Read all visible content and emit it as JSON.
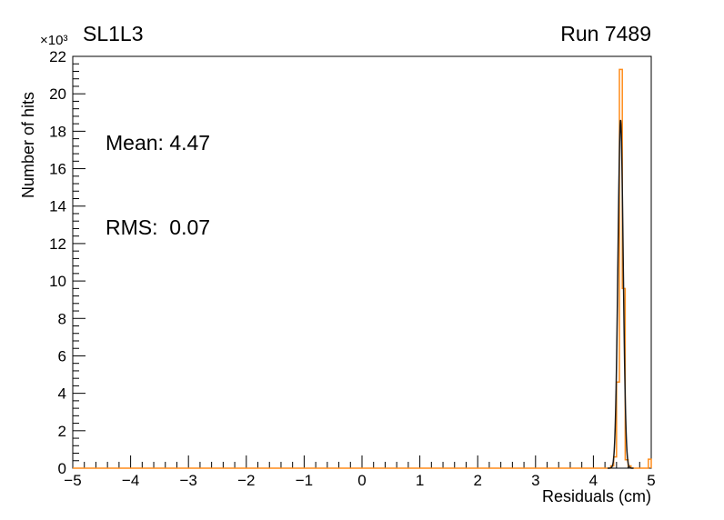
{
  "chart_data": {
    "type": "bar",
    "subtype": "histogram-with-gaussian-fit",
    "title": "SL1L3",
    "corner_label": "Run 7489",
    "xlabel": "Residuals (cm)",
    "ylabel": "Number of hits",
    "y_multiplier": "×10³",
    "annotations": {
      "mean": "Mean: 4.47",
      "rms": "RMS:  0.07"
    },
    "xlim": [
      -5,
      5
    ],
    "ylim": [
      0,
      22000
    ],
    "x_ticks": [
      -5,
      -4,
      -3,
      -2,
      -1,
      0,
      1,
      2,
      3,
      4,
      5
    ],
    "x_minor_divisions": 5,
    "y_ticks": [
      0,
      2,
      4,
      6,
      8,
      10,
      12,
      14,
      16,
      18,
      20,
      22
    ],
    "y_tick_scale": 1000,
    "y_minor_divisions": 5,
    "grid": false,
    "legend": "none",
    "frame_color": "#000000",
    "histogram": {
      "color": "#ff8c1a",
      "bin_width": 0.05,
      "bins": [
        {
          "x": 4.3,
          "y": 120
        },
        {
          "x": 4.35,
          "y": 600
        },
        {
          "x": 4.4,
          "y": 4600
        },
        {
          "x": 4.45,
          "y": 21300
        },
        {
          "x": 4.5,
          "y": 9600
        },
        {
          "x": 4.55,
          "y": 450
        },
        {
          "x": 4.6,
          "y": 120
        },
        {
          "x": 4.95,
          "y": 480
        }
      ]
    },
    "fit": {
      "color": "#1a1a1a",
      "shape": "gaussian",
      "mean": 4.47,
      "sigma": 0.045,
      "amplitude": 18600
    }
  }
}
